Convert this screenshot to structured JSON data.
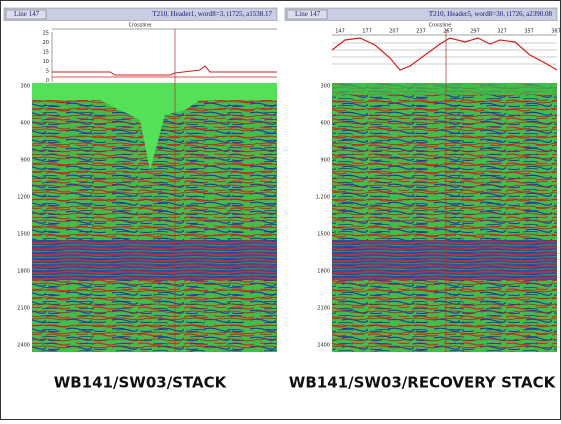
{
  "panels": [
    {
      "line": "Line 147",
      "header": "T210, Header1, word8=3, t1725, a1538.17",
      "axis_title": "Crossline",
      "graph_ticks": [
        "25",
        "20",
        "15",
        "10",
        "5",
        "0"
      ],
      "depth_ticks": [
        "300",
        "600",
        "900",
        "1200",
        "1500",
        "1800",
        "2100",
        "2400"
      ],
      "caption": "WB141/SW03/STACK"
    },
    {
      "line": "Line 147",
      "header": "T210, Header5, word8=30, t1726, a2390.08",
      "axis_title": "Crossline",
      "top_ticks": [
        "147",
        "177",
        "207",
        "237",
        "267",
        "297",
        "327",
        "357",
        "387"
      ],
      "depth_ticks": [
        "300",
        "600",
        "900",
        "1,200",
        "1500",
        "1800",
        "2100",
        "2400"
      ],
      "caption": "WB141/SW03/RECOVERY STACK"
    }
  ]
}
